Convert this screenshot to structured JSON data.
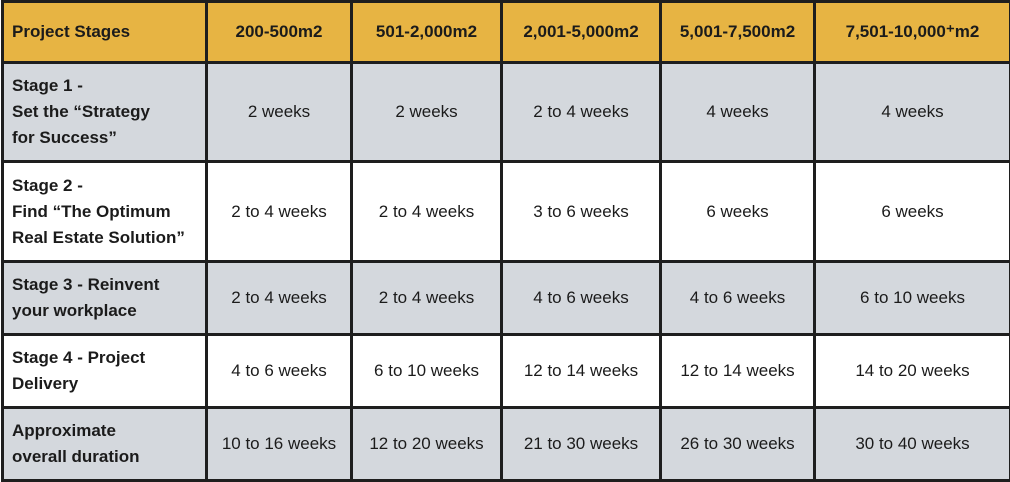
{
  "table": {
    "header": [
      "Project Stages",
      "200-500m2",
      "501-2,000m2",
      "2,001-5,000m2",
      "5,001-7,500m2",
      "7,501-10,000⁺m2"
    ],
    "rows": [
      {
        "stage": [
          "Stage 1 -",
          "Set the “Strategy",
          "for Success”"
        ],
        "cells": [
          "2 weeks",
          "2 weeks",
          "2 to 4 weeks",
          "4 weeks",
          "4 weeks"
        ]
      },
      {
        "stage": [
          "Stage 2 -",
          "Find “The Optimum",
          "Real Estate Solution”"
        ],
        "cells": [
          "2 to 4 weeks",
          "2 to 4 weeks",
          "3 to 6 weeks",
          "6 weeks",
          "6 weeks"
        ]
      },
      {
        "stage": [
          "Stage 3 - Reinvent",
          "your workplace"
        ],
        "cells": [
          "2 to 4 weeks",
          "2 to 4 weeks",
          "4 to 6 weeks",
          "4 to 6 weeks",
          "6 to 10 weeks"
        ]
      },
      {
        "stage": [
          "Stage 4 - Project",
          "Delivery"
        ],
        "cells": [
          "4 to 6 weeks",
          "6 to 10 weeks",
          "12 to 14 weeks",
          "12 to 14 weeks",
          "14 to 20 weeks"
        ]
      },
      {
        "stage": [
          "Approximate",
          "overall duration"
        ],
        "cells": [
          "10 to 16 weeks",
          "12 to 20 weeks",
          "21 to 30 weeks",
          "26 to 30 weeks",
          "30 to 40 weeks"
        ]
      }
    ]
  }
}
